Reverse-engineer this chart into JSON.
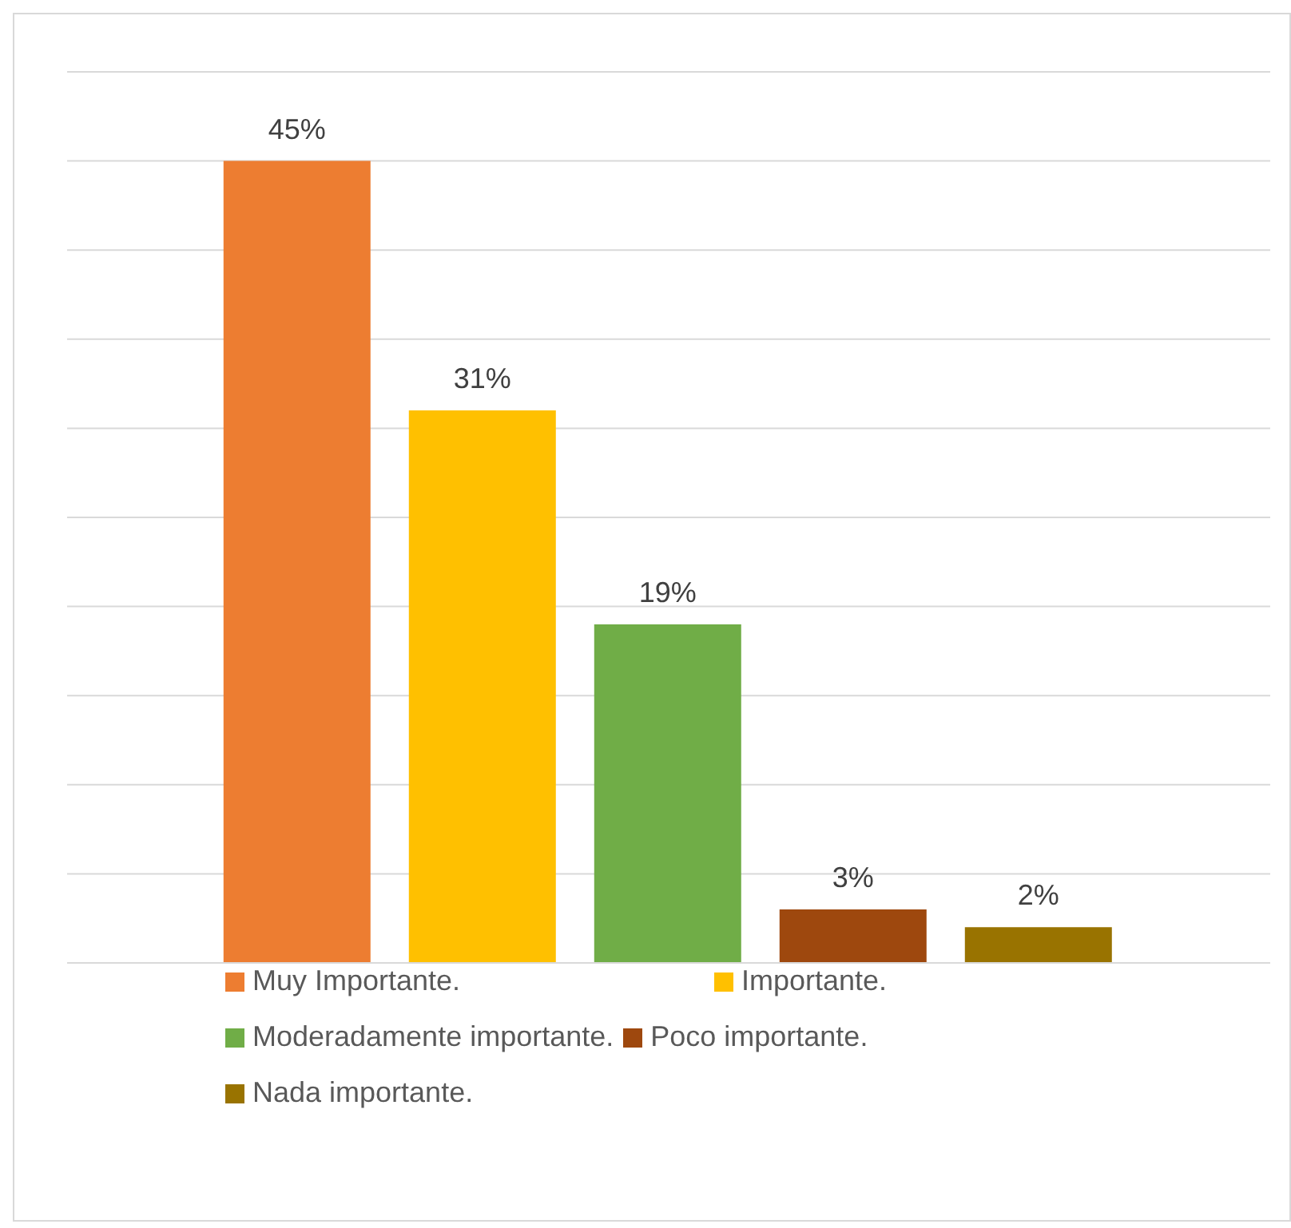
{
  "chart_data": {
    "type": "bar",
    "categories": [
      null
    ],
    "series": [
      {
        "name": "Muy Importante.",
        "color": "#ed7d31",
        "values": [
          45
        ],
        "value_labels": [
          "45%"
        ]
      },
      {
        "name": "Importante.",
        "color": "#ffc000",
        "values": [
          31
        ],
        "value_labels": [
          "31%"
        ]
      },
      {
        "name": "Moderadamente importante.",
        "color": "#70ad47",
        "values": [
          19
        ],
        "value_labels": [
          "19%"
        ]
      },
      {
        "name": "Poco importante.",
        "color": "#9e480e",
        "values": [
          3
        ],
        "value_labels": [
          "3%"
        ]
      },
      {
        "name": "Nada importante.",
        "color": "#997300",
        "values": [
          2
        ],
        "value_labels": [
          "2%"
        ]
      }
    ],
    "grid": "y",
    "legend": "bottom"
  }
}
